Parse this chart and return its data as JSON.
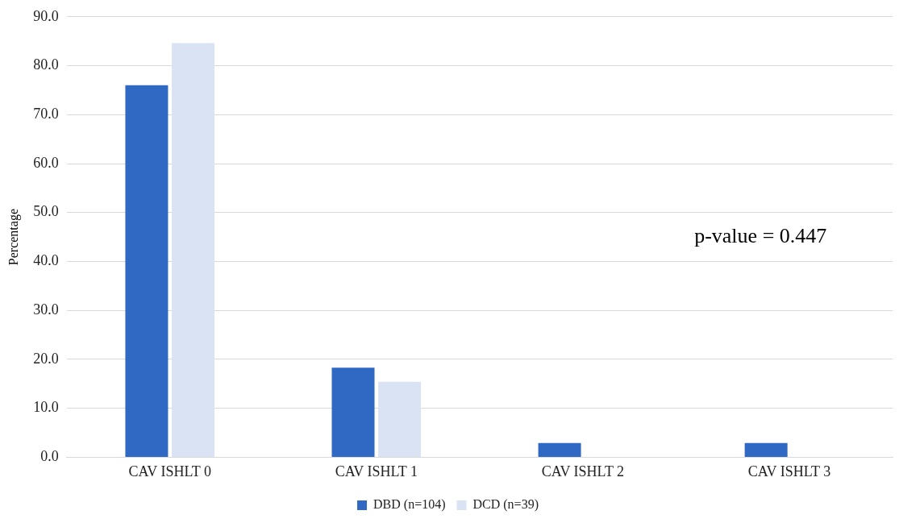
{
  "chart_data": {
    "type": "bar",
    "ylabel": "Percentage",
    "categories": [
      "CAV ISHLT 0",
      "CAV ISHLT 1",
      "CAV ISHLT 2",
      "CAV ISHLT 3"
    ],
    "series": [
      {
        "name": "DBD (n=104)",
        "color": "#2f69c3",
        "values": [
          76.0,
          18.3,
          2.9,
          2.9
        ]
      },
      {
        "name": "DCD (n=39)",
        "color": "#dae3f3",
        "values": [
          84.6,
          15.4,
          0.0,
          0.0
        ]
      }
    ],
    "ylim": [
      0,
      90
    ],
    "yticks": [
      {
        "value": 0,
        "label": "0.0"
      },
      {
        "value": 10,
        "label": "10.0"
      },
      {
        "value": 20,
        "label": "20.0"
      },
      {
        "value": 30,
        "label": "30.0"
      },
      {
        "value": 40,
        "label": "40.0"
      },
      {
        "value": 50,
        "label": "50.0"
      },
      {
        "value": 60,
        "label": "60.0"
      },
      {
        "value": 70,
        "label": "70.0"
      },
      {
        "value": 80,
        "label": "80.0"
      },
      {
        "value": 90,
        "label": "90.0"
      }
    ],
    "grid": "y",
    "legend": "bottom",
    "annotations": [
      "p-value = 0.447"
    ]
  }
}
